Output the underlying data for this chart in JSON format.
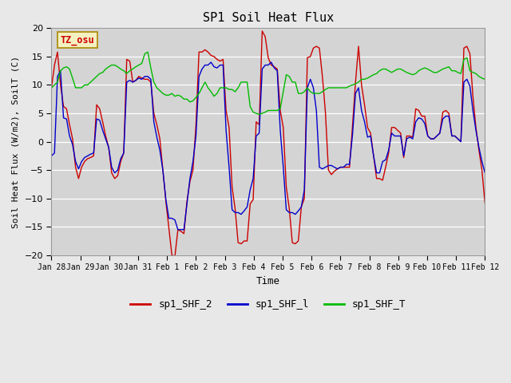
{
  "title": "SP1 Soil Heat Flux",
  "xlabel": "Time",
  "ylabel": "Soil Heat Flux (W/m2), SoilT (C)",
  "ylim": [
    -20,
    20
  ],
  "yticks": [
    -20,
    -15,
    -10,
    -5,
    0,
    5,
    10,
    15,
    20
  ],
  "bg_color": "#e8e8e8",
  "plot_bg": "#d4d4d4",
  "tz_label": "TZ_osu",
  "line_colors": {
    "shf2": "#cc0000",
    "shf1": "#0000cc",
    "shft": "#00bb00"
  },
  "legend_labels": [
    "sp1_SHF_2",
    "sp1_SHF_l",
    "sp1_SHF_T"
  ],
  "xticklabels": [
    "Jan 28",
    "Jan 29",
    "Jan 30",
    "Jan 31",
    "Feb 1",
    "Feb 2",
    "Feb 3",
    "Feb 4",
    "Feb 5",
    "Feb 6",
    "Feb 7",
    "Feb 8",
    "Feb 9",
    "Feb 10",
    "Feb 11",
    "Feb 12"
  ],
  "shf2": [
    9.5,
    13.5,
    15.8,
    10.0,
    6.2,
    5.8,
    3.0,
    0.5,
    -4.5,
    -6.5,
    -4.5,
    -3.5,
    -3.0,
    -2.8,
    -2.5,
    6.5,
    5.8,
    3.5,
    1.0,
    -1.0,
    -5.5,
    -6.5,
    -6.0,
    -3.5,
    -2.0,
    14.5,
    14.2,
    10.5,
    10.8,
    11.5,
    11.2,
    11.0,
    11.0,
    10.5,
    5.0,
    3.0,
    0.5,
    -5.0,
    -10.5,
    -15.2,
    -20.0,
    -20.2,
    -15.5,
    -15.8,
    -16.2,
    -10.5,
    -7.0,
    -5.0,
    3.0,
    15.8,
    15.8,
    16.2,
    15.8,
    15.2,
    15.0,
    14.5,
    14.2,
    14.5,
    5.5,
    2.5,
    -8.0,
    -11.8,
    -17.8,
    -18.0,
    -17.5,
    -17.5,
    -11.0,
    -10.2,
    3.5,
    3.0,
    19.5,
    18.5,
    14.8,
    13.5,
    13.2,
    12.8,
    5.5,
    2.5,
    -8.0,
    -11.8,
    -17.8,
    -18.0,
    -17.5,
    -11.5,
    -10.0,
    14.8,
    15.0,
    16.5,
    16.8,
    16.5,
    11.5,
    5.2,
    -5.0,
    -5.8,
    -5.2,
    -4.8,
    -4.5,
    -4.5,
    -4.5,
    -4.5,
    2.8,
    10.5,
    16.8,
    10.0,
    6.5,
    2.5,
    1.5,
    -2.5,
    -6.5,
    -6.5,
    -6.8,
    -4.5,
    -2.0,
    2.5,
    2.5,
    2.0,
    1.5,
    -2.8,
    1.0,
    1.0,
    0.8,
    5.8,
    5.5,
    4.5,
    4.5,
    1.0,
    0.5,
    0.5,
    1.0,
    1.5,
    5.2,
    5.5,
    5.0,
    1.0,
    1.0,
    0.5,
    0.0,
    16.5,
    16.8,
    15.5,
    8.0,
    2.5,
    -1.5,
    -5.0,
    -10.8
  ],
  "shf1": [
    -2.5,
    -2.0,
    11.5,
    12.5,
    4.2,
    4.0,
    1.0,
    -0.5,
    -3.5,
    -4.8,
    -3.5,
    -2.8,
    -2.5,
    -2.2,
    -2.0,
    4.0,
    3.8,
    2.0,
    0.5,
    -1.0,
    -4.5,
    -5.5,
    -5.0,
    -3.0,
    -2.0,
    10.5,
    10.8,
    10.5,
    10.8,
    11.2,
    11.0,
    11.5,
    11.5,
    11.0,
    3.5,
    0.8,
    -1.5,
    -5.0,
    -10.2,
    -13.5,
    -13.5,
    -13.8,
    -15.5,
    -15.5,
    -15.5,
    -11.0,
    -6.5,
    -3.5,
    1.0,
    11.5,
    12.8,
    13.5,
    13.5,
    14.0,
    13.2,
    13.0,
    13.5,
    13.5,
    2.0,
    -4.5,
    -12.0,
    -12.5,
    -12.5,
    -12.8,
    -12.2,
    -11.5,
    -8.5,
    -6.5,
    1.0,
    1.5,
    12.8,
    13.5,
    13.5,
    14.0,
    13.0,
    12.5,
    2.0,
    -4.5,
    -12.0,
    -12.5,
    -12.5,
    -12.8,
    -12.2,
    -11.5,
    -8.5,
    9.5,
    11.0,
    9.5,
    5.5,
    -4.5,
    -4.8,
    -4.5,
    -4.2,
    -4.2,
    -4.5,
    -4.8,
    -4.5,
    -4.5,
    -4.0,
    -4.0,
    1.2,
    8.5,
    9.5,
    5.5,
    3.5,
    0.8,
    1.0,
    -2.5,
    -5.5,
    -5.5,
    -3.5,
    -3.2,
    -1.5,
    1.5,
    1.0,
    1.0,
    1.0,
    -2.5,
    0.5,
    0.8,
    0.5,
    3.5,
    4.2,
    4.0,
    3.2,
    1.0,
    0.5,
    0.5,
    1.0,
    1.5,
    4.0,
    4.5,
    4.5,
    1.0,
    1.0,
    0.5,
    0.0,
    10.5,
    11.0,
    9.8,
    5.5,
    2.0,
    -1.0,
    -3.5,
    -5.5
  ],
  "shft": [
    9.5,
    10.0,
    10.5,
    12.5,
    13.0,
    13.2,
    12.8,
    11.2,
    9.5,
    9.5,
    9.5,
    10.0,
    10.0,
    10.5,
    11.0,
    11.5,
    12.0,
    12.2,
    12.8,
    13.2,
    13.5,
    13.5,
    13.2,
    12.8,
    12.5,
    12.0,
    12.5,
    12.8,
    13.2,
    13.5,
    13.8,
    15.5,
    15.8,
    13.0,
    10.5,
    9.5,
    9.0,
    8.5,
    8.2,
    8.2,
    8.5,
    8.0,
    8.2,
    8.0,
    7.5,
    7.5,
    7.0,
    7.2,
    7.8,
    8.5,
    9.5,
    10.5,
    9.5,
    8.8,
    8.0,
    8.5,
    9.5,
    9.5,
    9.5,
    9.2,
    9.2,
    8.8,
    9.5,
    10.5,
    10.5,
    10.5,
    6.2,
    5.2,
    5.0,
    4.8,
    5.0,
    5.2,
    5.5,
    5.5,
    5.5,
    5.5,
    5.8,
    8.8,
    11.8,
    11.5,
    10.5,
    10.5,
    8.5,
    8.5,
    8.8,
    9.5,
    8.8,
    8.5,
    8.5,
    8.5,
    8.8,
    9.2,
    9.5,
    9.5,
    9.5,
    9.5,
    9.5,
    9.5,
    9.5,
    9.8,
    10.0,
    10.2,
    10.5,
    11.0,
    11.0,
    11.2,
    11.5,
    11.8,
    12.0,
    12.5,
    12.8,
    12.8,
    12.5,
    12.2,
    12.5,
    12.8,
    12.8,
    12.5,
    12.2,
    12.0,
    11.8,
    12.0,
    12.5,
    12.8,
    13.0,
    12.8,
    12.5,
    12.2,
    12.2,
    12.5,
    12.8,
    13.0,
    13.2,
    12.5,
    12.5,
    12.2,
    12.0,
    14.5,
    14.8,
    12.5,
    12.2,
    12.0,
    11.5,
    11.2,
    11.0
  ]
}
